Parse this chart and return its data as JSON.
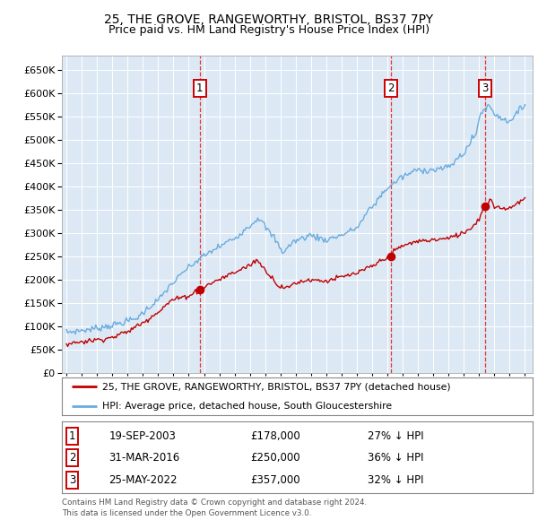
{
  "title": "25, THE GROVE, RANGEWORTHY, BRISTOL, BS37 7PY",
  "subtitle": "Price paid vs. HM Land Registry's House Price Index (HPI)",
  "legend_line1": "25, THE GROVE, RANGEWORTHY, BRISTOL, BS37 7PY (detached house)",
  "legend_line2": "HPI: Average price, detached house, South Gloucestershire",
  "footer1": "Contains HM Land Registry data © Crown copyright and database right 2024.",
  "footer2": "This data is licensed under the Open Government Licence v3.0.",
  "sales": [
    {
      "label": "1",
      "date": "19-SEP-2003",
      "price": "£178,000",
      "pct": "27% ↓ HPI",
      "year": 2003.72
    },
    {
      "label": "2",
      "date": "31-MAR-2016",
      "price": "£250,000",
      "pct": "36% ↓ HPI",
      "year": 2016.25
    },
    {
      "label": "3",
      "date": "25-MAY-2022",
      "price": "£357,000",
      "pct": "32% ↓ HPI",
      "year": 2022.4
    }
  ],
  "sale_prices": [
    178000,
    250000,
    357000
  ],
  "hpi_color": "#6aabde",
  "price_color": "#c00000",
  "vline_color": "#ee1111",
  "plot_bg": "#dce9f5",
  "ylim_max": 680000,
  "ytick_max": 650000,
  "ytick_step": 50000,
  "xlim_start": 1994.7,
  "xlim_end": 2025.5,
  "title_fontsize": 10,
  "subtitle_fontsize": 9
}
